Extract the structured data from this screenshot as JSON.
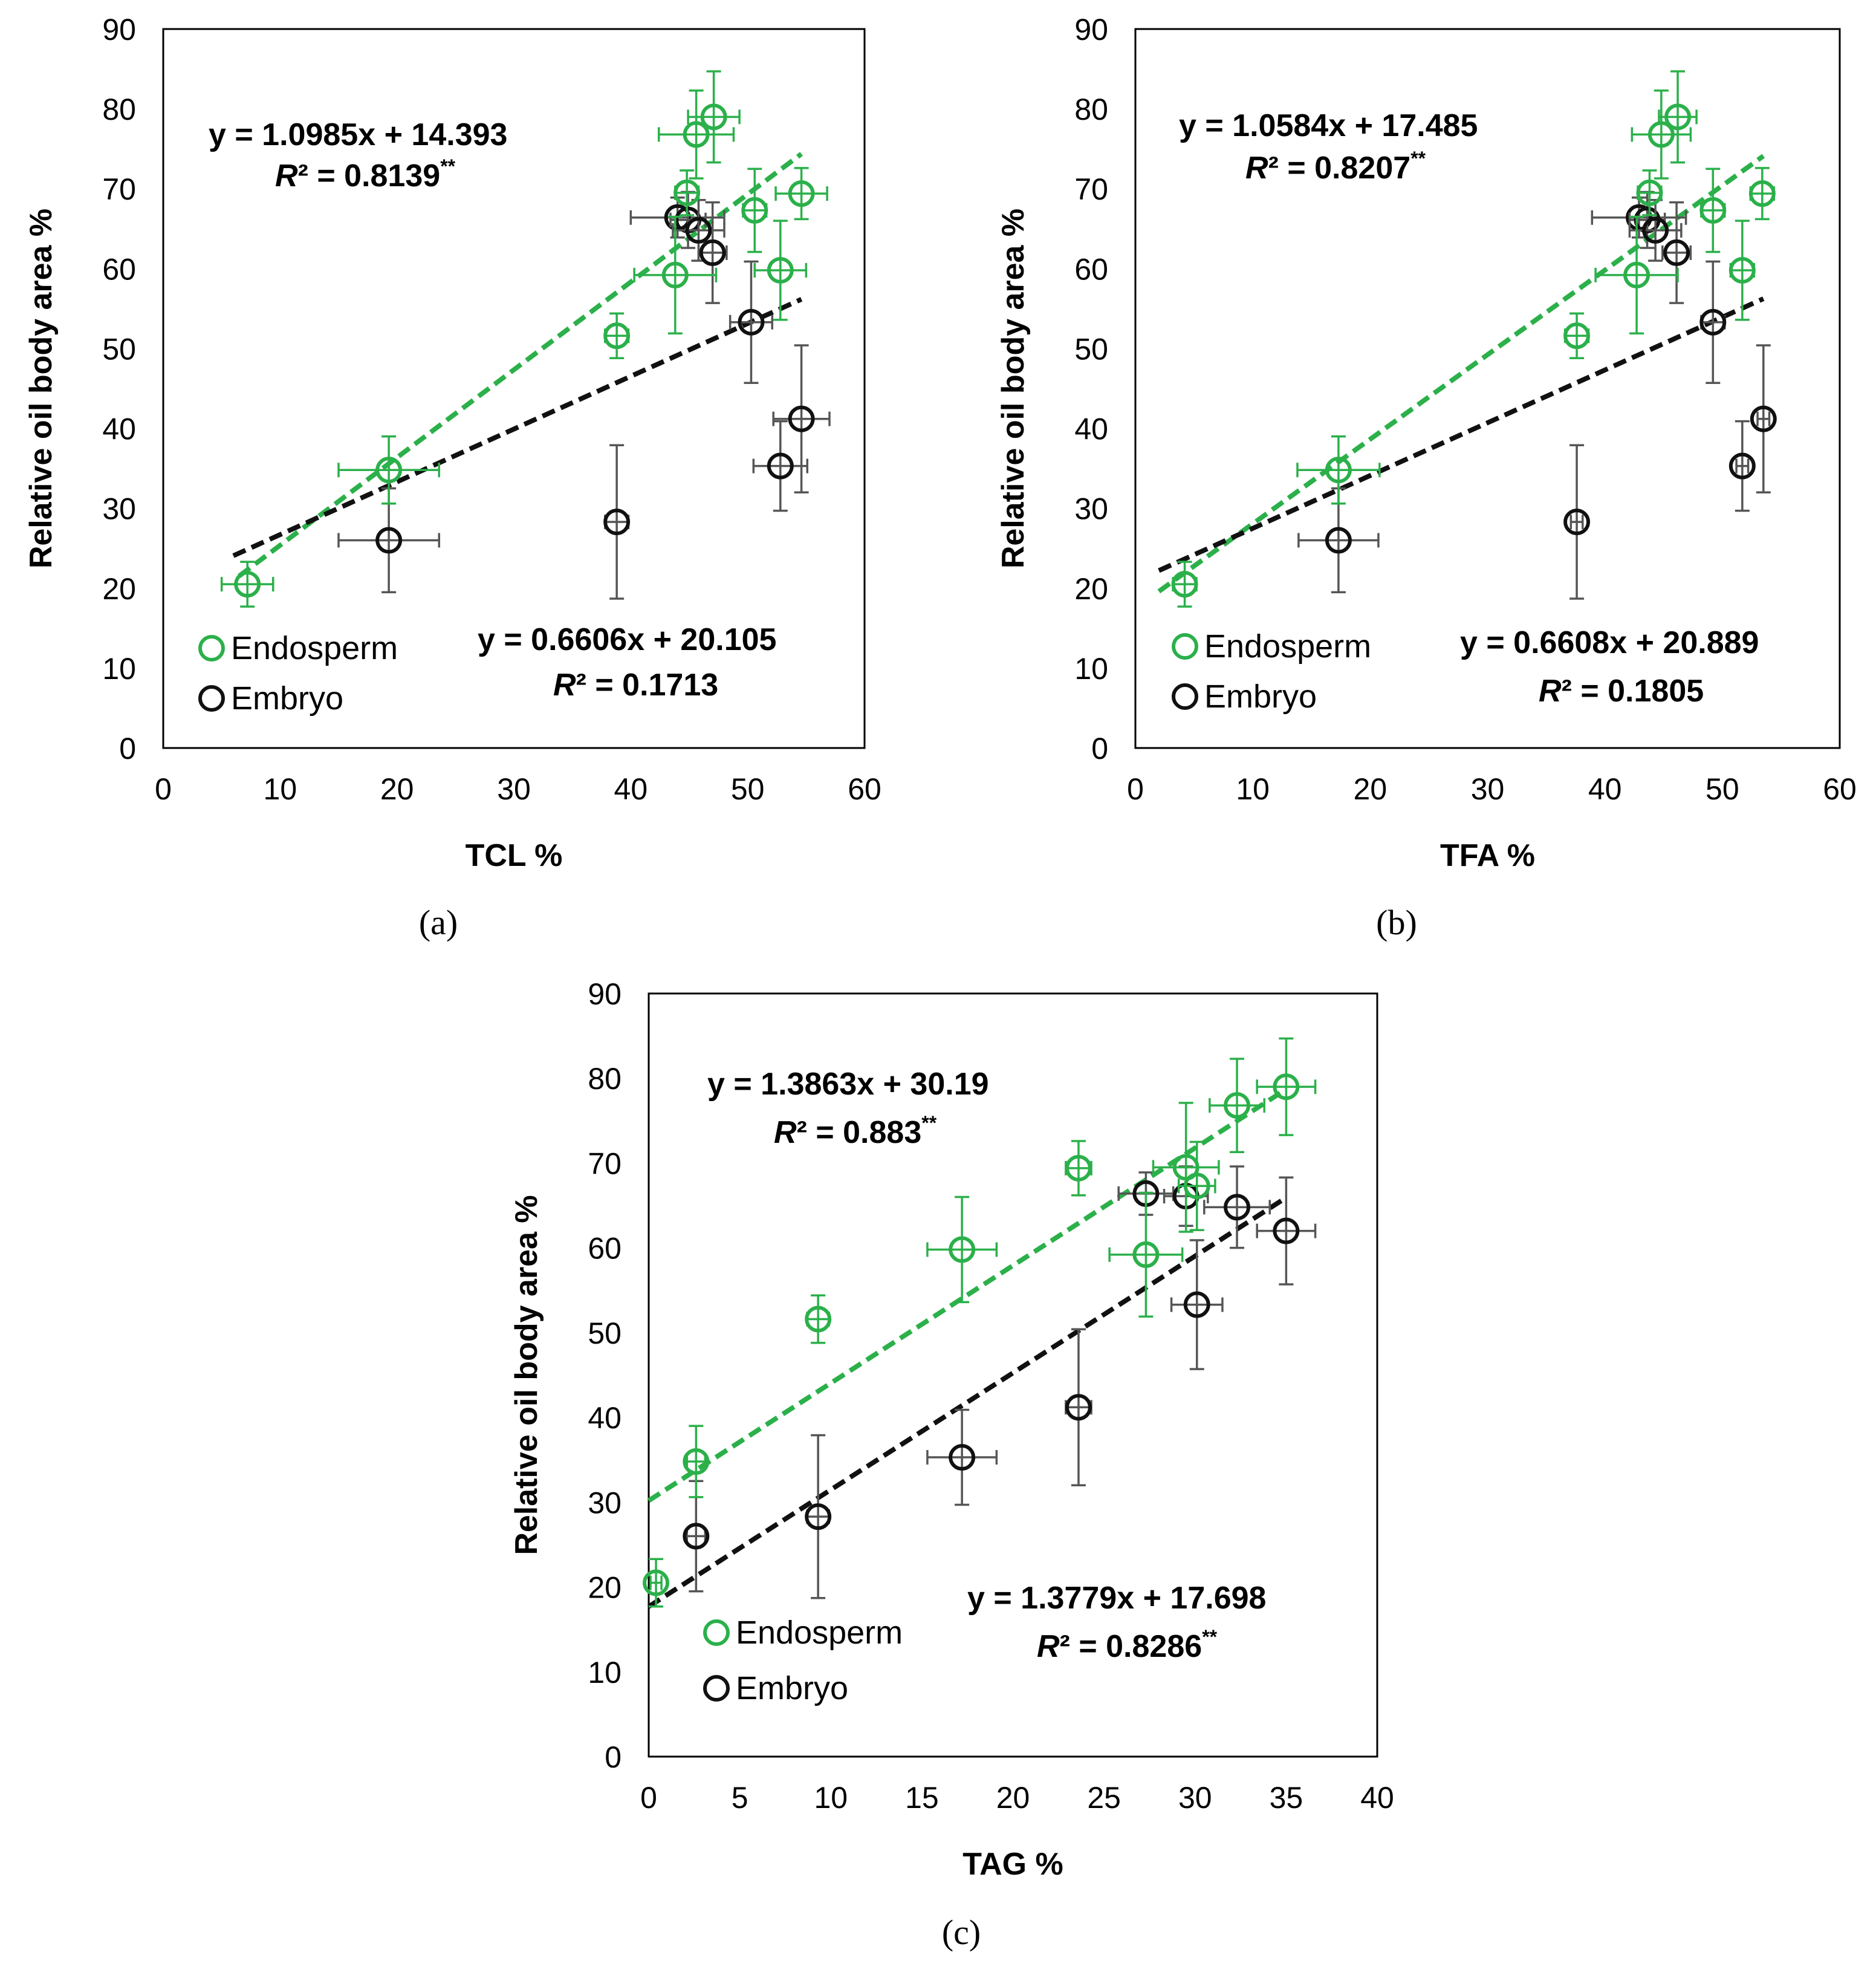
{
  "colors": {
    "endosperm": "#2bb04a",
    "embryo": "#111111",
    "errbar_embryo": "#555555"
  },
  "chart_data": [
    {
      "type": "scatter",
      "panel_label": "(a)",
      "xlabel": "TCL %",
      "ylabel": "Relative oil body area %",
      "xlim": [
        0,
        60
      ],
      "ylim": [
        0,
        90
      ],
      "xticks": [
        0,
        10,
        20,
        30,
        40,
        50,
        60
      ],
      "yticks": [
        0,
        10,
        20,
        30,
        40,
        50,
        60,
        70,
        80,
        90
      ],
      "series": [
        {
          "name": "Endosperm",
          "color": "#2bb04a",
          "points": [
            {
              "x": 7.2,
              "y": 20.5,
              "xerr": 2.2,
              "yerr": 2.8
            },
            {
              "x": 19.3,
              "y": 34.8,
              "xerr": 4.3,
              "yerr": 4.2
            },
            {
              "x": 38.8,
              "y": 51.6,
              "xerr": 1.0,
              "yerr": 2.8
            },
            {
              "x": 43.8,
              "y": 59.2,
              "xerr": 3.5,
              "yerr": 7.3
            },
            {
              "x": 44.8,
              "y": 69.5,
              "xerr": 1.0,
              "yerr": 2.8
            },
            {
              "x": 45.6,
              "y": 76.8,
              "xerr": 3.2,
              "yerr": 5.5
            },
            {
              "x": 47.1,
              "y": 79.0,
              "xerr": 2.2,
              "yerr": 5.7
            },
            {
              "x": 50.6,
              "y": 67.3,
              "xerr": 1.0,
              "yerr": 5.2
            },
            {
              "x": 52.8,
              "y": 59.8,
              "xerr": 2.2,
              "yerr": 6.2
            },
            {
              "x": 54.6,
              "y": 69.4,
              "xerr": 2.2,
              "yerr": 3.2
            }
          ],
          "fit": {
            "slope": 1.0985,
            "intercept": 14.393,
            "x_range": [
              6.5,
              54.6
            ]
          }
        },
        {
          "name": "Embryo",
          "color": "#111111",
          "points": [
            {
              "x": 19.3,
              "y": 26.0,
              "xerr": 4.3,
              "yerr": 6.5
            },
            {
              "x": 38.8,
              "y": 28.3,
              "xerr": 1.0,
              "yerr": 9.6
            },
            {
              "x": 44.0,
              "y": 66.4,
              "xerr": 4.0,
              "yerr": 2.5
            },
            {
              "x": 44.9,
              "y": 66.1,
              "xerr": 1.5,
              "yerr": 3.5
            },
            {
              "x": 45.8,
              "y": 64.8,
              "xerr": 2.2,
              "yerr": 3.8
            },
            {
              "x": 47.0,
              "y": 62.0,
              "xerr": 1.2,
              "yerr": 6.3
            },
            {
              "x": 50.3,
              "y": 53.3,
              "xerr": 1.8,
              "yerr": 7.6
            },
            {
              "x": 52.8,
              "y": 35.3,
              "xerr": 2.3,
              "yerr": 5.6
            },
            {
              "x": 54.6,
              "y": 41.2,
              "xerr": 2.4,
              "yerr": 9.2
            }
          ],
          "fit": {
            "slope": 0.6606,
            "intercept": 20.105,
            "x_range": [
              6.0,
              54.6
            ]
          }
        }
      ],
      "legend": [
        "Endosperm",
        "Embryo"
      ],
      "annotations": {
        "endosperm_eq": "y = 1.0985x + 14.393",
        "endosperm_r2": "0.8139",
        "endosperm_sig": "**",
        "embryo_eq": "y = 0.6606x + 20.105",
        "embryo_r2": "0.1713",
        "embryo_sig": ""
      }
    },
    {
      "type": "scatter",
      "panel_label": "(b)",
      "xlabel": "TFA %",
      "ylabel": "Relative oil body area %",
      "xlim": [
        0,
        60
      ],
      "ylim": [
        0,
        90
      ],
      "xticks": [
        0,
        10,
        20,
        30,
        40,
        50,
        60
      ],
      "yticks": [
        0,
        10,
        20,
        30,
        40,
        50,
        60,
        70,
        80,
        90
      ],
      "series": [
        {
          "name": "Endosperm",
          "color": "#2bb04a",
          "points": [
            {
              "x": 4.2,
              "y": 20.5,
              "xerr": 1.0,
              "yerr": 2.8
            },
            {
              "x": 17.3,
              "y": 34.8,
              "xerr": 3.5,
              "yerr": 4.2
            },
            {
              "x": 37.6,
              "y": 51.6,
              "xerr": 1.0,
              "yerr": 2.8
            },
            {
              "x": 42.7,
              "y": 59.2,
              "xerr": 3.5,
              "yerr": 7.3
            },
            {
              "x": 43.8,
              "y": 69.5,
              "xerr": 1.0,
              "yerr": 2.8
            },
            {
              "x": 44.8,
              "y": 76.8,
              "xerr": 2.5,
              "yerr": 5.5
            },
            {
              "x": 46.2,
              "y": 79.0,
              "xerr": 1.6,
              "yerr": 5.7
            },
            {
              "x": 49.2,
              "y": 67.3,
              "xerr": 1.0,
              "yerr": 5.2
            },
            {
              "x": 51.7,
              "y": 59.8,
              "xerr": 1.0,
              "yerr": 6.2
            },
            {
              "x": 53.4,
              "y": 69.4,
              "xerr": 1.0,
              "yerr": 3.2
            }
          ],
          "fit": {
            "slope": 1.0584,
            "intercept": 17.485,
            "x_range": [
              2.0,
              53.5
            ]
          }
        },
        {
          "name": "Embryo",
          "color": "#111111",
          "points": [
            {
              "x": 17.3,
              "y": 26.0,
              "xerr": 3.4,
              "yerr": 6.5
            },
            {
              "x": 37.6,
              "y": 28.3,
              "xerr": 0.5,
              "yerr": 9.6
            },
            {
              "x": 42.9,
              "y": 66.4,
              "xerr": 4.0,
              "yerr": 2.5
            },
            {
              "x": 43.6,
              "y": 66.1,
              "xerr": 1.5,
              "yerr": 3.5
            },
            {
              "x": 44.3,
              "y": 64.8,
              "xerr": 2.2,
              "yerr": 3.8
            },
            {
              "x": 46.1,
              "y": 62.0,
              "xerr": 1.2,
              "yerr": 6.3
            },
            {
              "x": 49.2,
              "y": 53.3,
              "xerr": 1.0,
              "yerr": 7.6
            },
            {
              "x": 51.7,
              "y": 35.3,
              "xerr": 0.5,
              "yerr": 5.6
            },
            {
              "x": 53.5,
              "y": 41.2,
              "xerr": 0.5,
              "yerr": 9.2
            }
          ],
          "fit": {
            "slope": 0.6608,
            "intercept": 20.889,
            "x_range": [
              2.0,
              53.5
            ]
          }
        }
      ],
      "legend": [
        "Endosperm",
        "Embryo"
      ],
      "annotations": {
        "endosperm_eq": "y = 1.0584x + 17.485",
        "endosperm_r2": "0.8207",
        "endosperm_sig": "**",
        "embryo_eq": "y = 0.6608x + 20.889",
        "embryo_r2": "0.1805",
        "embryo_sig": ""
      }
    },
    {
      "type": "scatter",
      "panel_label": "(c)",
      "xlabel": "TAG %",
      "ylabel": "Relative oil body area %",
      "xlim": [
        0,
        40
      ],
      "ylim": [
        0,
        90
      ],
      "xticks": [
        0,
        5,
        10,
        15,
        20,
        25,
        30,
        35,
        40
      ],
      "yticks": [
        0,
        10,
        20,
        30,
        40,
        50,
        60,
        70,
        80,
        90
      ],
      "series": [
        {
          "name": "Endosperm",
          "color": "#2bb04a",
          "points": [
            {
              "x": 0.4,
              "y": 20.5,
              "xerr": 0.3,
              "yerr": 2.8
            },
            {
              "x": 2.6,
              "y": 34.8,
              "xerr": 0.5,
              "yerr": 4.2
            },
            {
              "x": 9.3,
              "y": 51.6,
              "xerr": 0.6,
              "yerr": 2.8
            },
            {
              "x": 17.2,
              "y": 59.8,
              "xerr": 1.9,
              "yerr": 6.2
            },
            {
              "x": 23.6,
              "y": 69.4,
              "xerr": 0.7,
              "yerr": 3.2
            },
            {
              "x": 27.3,
              "y": 59.2,
              "xerr": 2.0,
              "yerr": 7.3
            },
            {
              "x": 29.5,
              "y": 69.5,
              "xerr": 1.8,
              "yerr": 7.6
            },
            {
              "x": 30.1,
              "y": 67.3,
              "xerr": 1.0,
              "yerr": 5.2
            },
            {
              "x": 32.3,
              "y": 76.8,
              "xerr": 1.5,
              "yerr": 5.5
            },
            {
              "x": 35.0,
              "y": 79.0,
              "xerr": 1.6,
              "yerr": 5.7
            }
          ],
          "fit": {
            "slope": 1.3863,
            "intercept": 30.19,
            "x_range": [
              0.0,
              35.0
            ]
          }
        },
        {
          "name": "Embryo",
          "color": "#111111",
          "points": [
            {
              "x": 2.6,
              "y": 26.0,
              "xerr": 0.5,
              "yerr": 6.5
            },
            {
              "x": 9.3,
              "y": 28.3,
              "xerr": 0.6,
              "yerr": 9.6
            },
            {
              "x": 17.2,
              "y": 35.3,
              "xerr": 1.9,
              "yerr": 5.6
            },
            {
              "x": 23.6,
              "y": 41.2,
              "xerr": 0.7,
              "yerr": 9.2
            },
            {
              "x": 27.3,
              "y": 66.4,
              "xerr": 1.5,
              "yerr": 2.5
            },
            {
              "x": 29.5,
              "y": 66.1,
              "xerr": 1.2,
              "yerr": 3.5
            },
            {
              "x": 30.1,
              "y": 53.3,
              "xerr": 1.4,
              "yerr": 7.6
            },
            {
              "x": 32.3,
              "y": 64.8,
              "xerr": 1.8,
              "yerr": 4.8
            },
            {
              "x": 35.0,
              "y": 62.0,
              "xerr": 1.6,
              "yerr": 6.3
            }
          ],
          "fit": {
            "slope": 1.3779,
            "intercept": 17.698,
            "x_range": [
              0.0,
              35.0
            ]
          }
        }
      ],
      "legend": [
        "Endosperm",
        "Embryo"
      ],
      "annotations": {
        "endosperm_eq": "y = 1.3863x + 30.19",
        "endosperm_r2": "0.883",
        "endosperm_sig": "**",
        "embryo_eq": "y = 1.3779x + 17.698",
        "embryo_r2": "0.8286",
        "embryo_sig": "**"
      }
    }
  ]
}
